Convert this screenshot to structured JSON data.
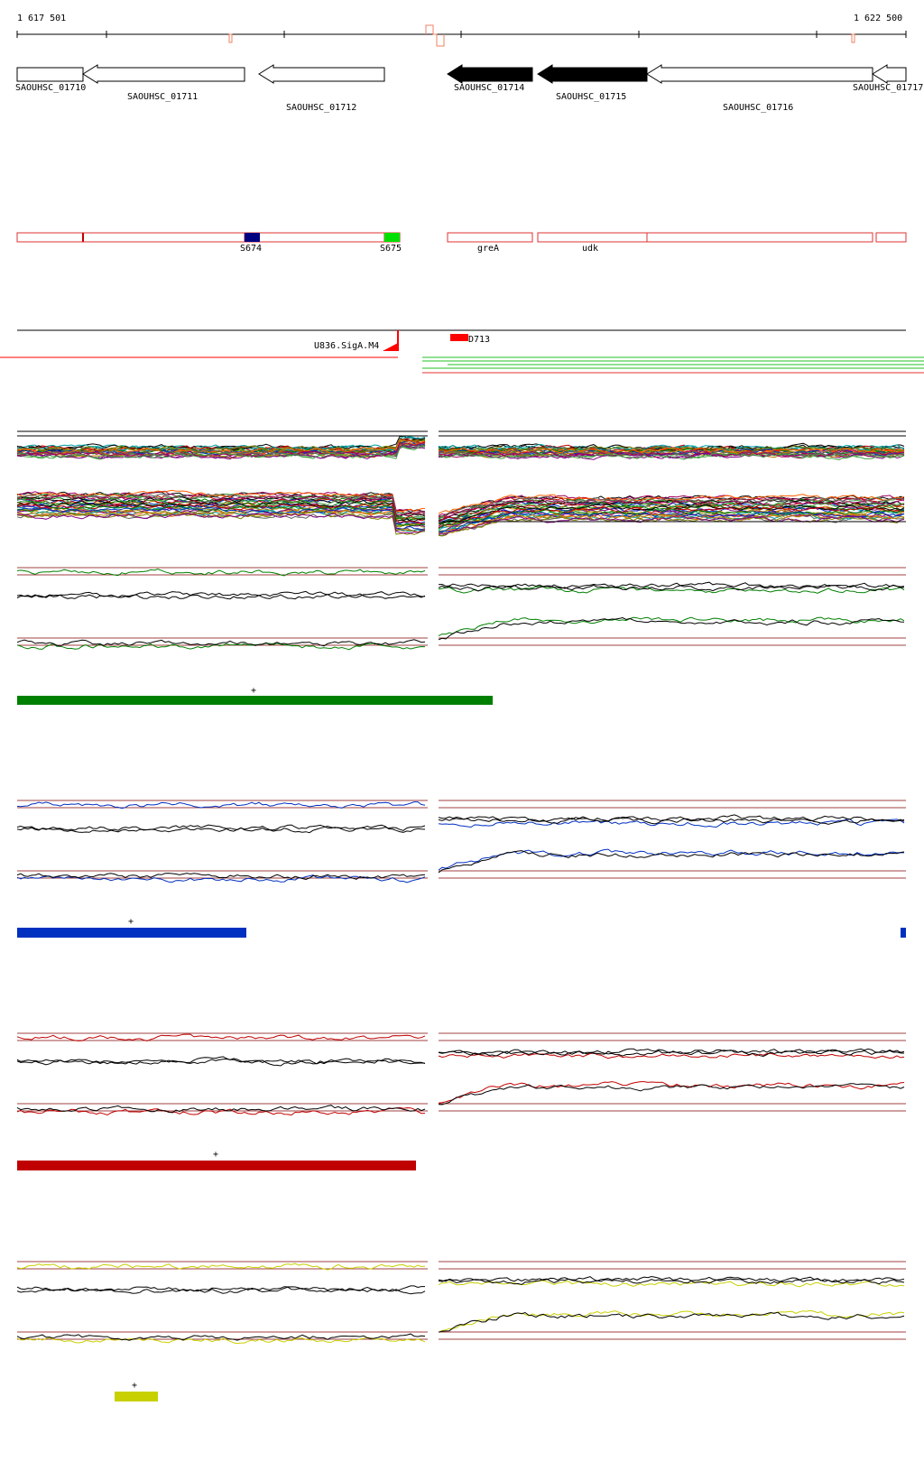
{
  "ruler": {
    "start_label": "1 617 501",
    "end_label": "1 622 500"
  },
  "genes": [
    {
      "id": "SAOUHSC_01710",
      "filled": false
    },
    {
      "id": "SAOUHSC_01711",
      "filled": false
    },
    {
      "id": "SAOUHSC_01712",
      "filled": false
    },
    {
      "id": "SAOUHSC_01714",
      "filled": true
    },
    {
      "id": "SAOUHSC_01715",
      "filled": true
    },
    {
      "id": "SAOUHSC_01716",
      "filled": false
    },
    {
      "id": "SAOUHSC_01717",
      "filled": false
    }
  ],
  "features": [
    {
      "label": "S674",
      "color": "#000080"
    },
    {
      "label": "S675",
      "color": "#00e000"
    },
    {
      "label": "greA",
      "color": ""
    },
    {
      "label": "udk",
      "color": ""
    }
  ],
  "annotations": [
    {
      "label": "U836.SigA.M4",
      "color": "#ff0000"
    },
    {
      "label": "D713",
      "color": "#ff0000"
    }
  ],
  "colors": {
    "feature_outline": "#e03030",
    "ruler_marker": "#f08060",
    "green": "#008000",
    "blue": "#0030c0",
    "red": "#c00000",
    "yellow": "#c8d000",
    "guide": "#a04040"
  },
  "segment_bars": [
    {
      "color": "#008000",
      "marker": "+"
    },
    {
      "color": "#0030c0",
      "marker": "+"
    },
    {
      "color": "#c00000",
      "marker": "+"
    },
    {
      "color": "#c8d000",
      "marker": "+"
    }
  ]
}
